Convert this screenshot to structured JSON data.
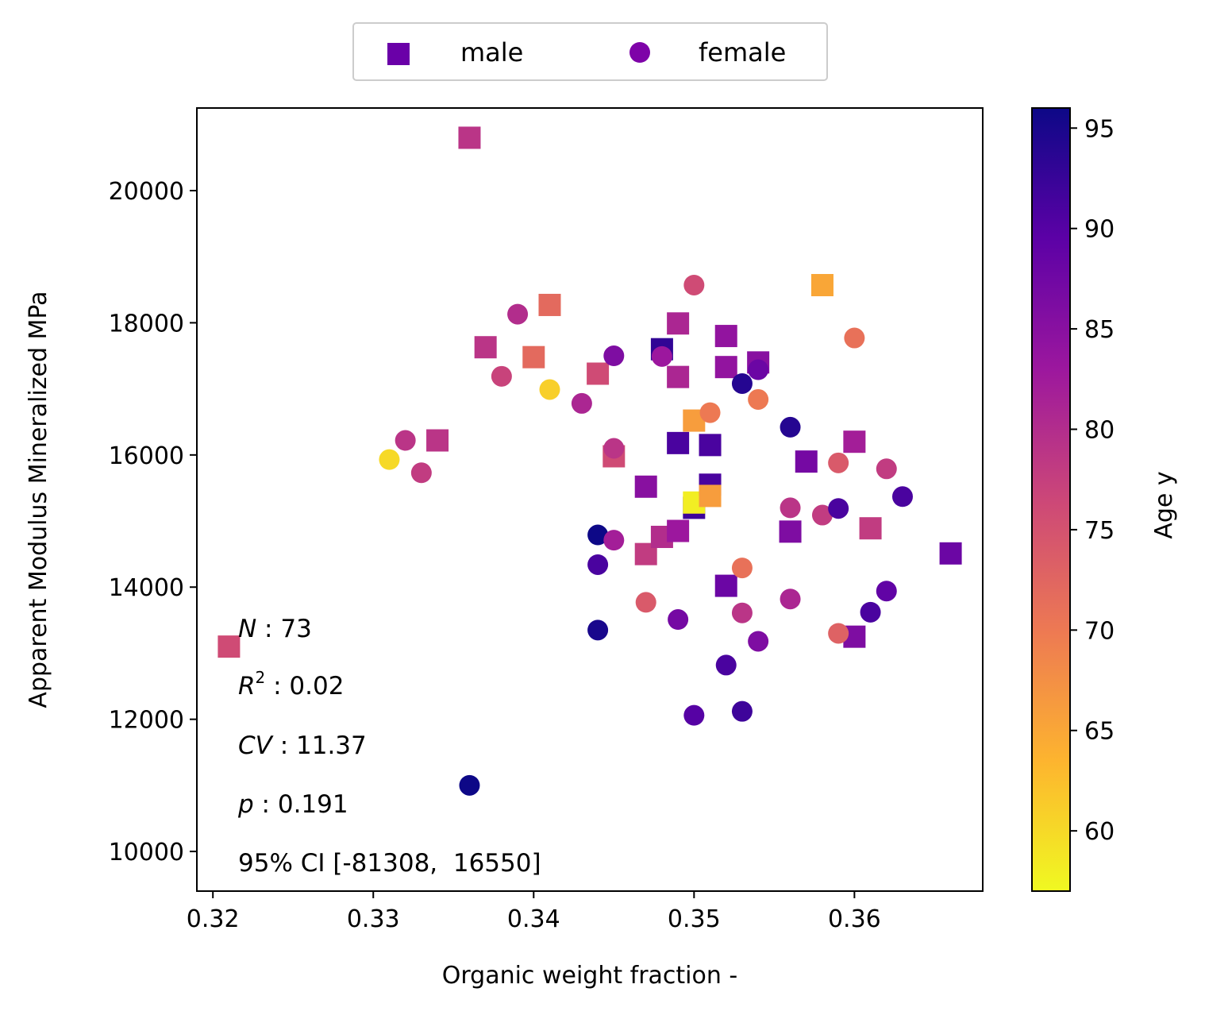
{
  "chart_data": {
    "type": "scatter",
    "xlabel": "Organic weight fraction -",
    "ylabel": "Apparent Modulus Mineralized MPa",
    "xlim": [
      0.319,
      0.368
    ],
    "ylim": [
      9400,
      21250
    ],
    "x_ticks": [
      0.32,
      0.33,
      0.34,
      0.35,
      0.36
    ],
    "x_tick_labels": [
      "0.32",
      "0.33",
      "0.34",
      "0.35",
      "0.36"
    ],
    "y_ticks": [
      10000,
      12000,
      14000,
      16000,
      18000,
      20000
    ],
    "y_tick_labels": [
      "10000",
      "12000",
      "14000",
      "16000",
      "18000",
      "20000"
    ],
    "grid": false,
    "legend": {
      "placement": "top-center",
      "entries": [
        {
          "label": "male",
          "marker": "square",
          "color": "#6a00a8"
        },
        {
          "label": "female",
          "marker": "circle",
          "color": "#7e03a8"
        }
      ]
    },
    "colorbar": {
      "label": "Age y",
      "colormap": "plasma_r",
      "range": [
        57,
        96
      ],
      "ticks": [
        60,
        65,
        70,
        75,
        80,
        85,
        90,
        95
      ],
      "tick_labels": [
        "60",
        "65",
        "70",
        "75",
        "80",
        "85",
        "90",
        "95"
      ],
      "stops": [
        "#f0f921",
        "#fdb42f",
        "#ed7953",
        "#cc4778",
        "#9c179e",
        "#5c01a6",
        "#0d0887"
      ]
    },
    "annotations": {
      "n_sym": "N",
      "n_val": " : 73",
      "r2_sym": "R",
      "r2_sup": "2",
      "r2_val": " : 0.02",
      "cv_sym": "CV",
      "cv_val": " : 11.37",
      "p_sym": "p",
      "p_val": " : 0.191",
      "ci_text": "95% CI [-81308,  16550]"
    },
    "series": [
      {
        "name": "male",
        "marker": "square",
        "points": [
          {
            "x": 0.321,
            "y": 13100,
            "age": 76
          },
          {
            "x": 0.334,
            "y": 16220,
            "age": 79
          },
          {
            "x": 0.336,
            "y": 20800,
            "age": 79
          },
          {
            "x": 0.337,
            "y": 17630,
            "age": 79
          },
          {
            "x": 0.34,
            "y": 17480,
            "age": 72
          },
          {
            "x": 0.341,
            "y": 18270,
            "age": 72
          },
          {
            "x": 0.344,
            "y": 17230,
            "age": 76
          },
          {
            "x": 0.345,
            "y": 15980,
            "age": 76
          },
          {
            "x": 0.347,
            "y": 15520,
            "age": 85
          },
          {
            "x": 0.347,
            "y": 14500,
            "age": 78
          },
          {
            "x": 0.348,
            "y": 17600,
            "age": 93
          },
          {
            "x": 0.348,
            "y": 14760,
            "age": 80
          },
          {
            "x": 0.349,
            "y": 17990,
            "age": 81
          },
          {
            "x": 0.349,
            "y": 17180,
            "age": 81
          },
          {
            "x": 0.349,
            "y": 16180,
            "age": 91
          },
          {
            "x": 0.349,
            "y": 14850,
            "age": 83
          },
          {
            "x": 0.35,
            "y": 16520,
            "age": 66
          },
          {
            "x": 0.35,
            "y": 15200,
            "age": 92
          },
          {
            "x": 0.35,
            "y": 15280,
            "age": 58
          },
          {
            "x": 0.351,
            "y": 16150,
            "age": 91
          },
          {
            "x": 0.351,
            "y": 15550,
            "age": 91
          },
          {
            "x": 0.351,
            "y": 15380,
            "age": 66
          },
          {
            "x": 0.352,
            "y": 17800,
            "age": 84
          },
          {
            "x": 0.352,
            "y": 17330,
            "age": 84
          },
          {
            "x": 0.352,
            "y": 14020,
            "age": 88
          },
          {
            "x": 0.354,
            "y": 17400,
            "age": 85
          },
          {
            "x": 0.356,
            "y": 14840,
            "age": 86
          },
          {
            "x": 0.357,
            "y": 15900,
            "age": 87
          },
          {
            "x": 0.358,
            "y": 18570,
            "age": 65
          },
          {
            "x": 0.36,
            "y": 16200,
            "age": 82
          },
          {
            "x": 0.36,
            "y": 13250,
            "age": 86
          },
          {
            "x": 0.361,
            "y": 14890,
            "age": 78
          },
          {
            "x": 0.366,
            "y": 14510,
            "age": 88
          }
        ]
      },
      {
        "name": "female",
        "marker": "circle",
        "points": [
          {
            "x": 0.331,
            "y": 15930,
            "age": 60
          },
          {
            "x": 0.332,
            "y": 16220,
            "age": 79
          },
          {
            "x": 0.333,
            "y": 15730,
            "age": 78
          },
          {
            "x": 0.336,
            "y": 11000,
            "age": 96
          },
          {
            "x": 0.338,
            "y": 17190,
            "age": 77
          },
          {
            "x": 0.339,
            "y": 18130,
            "age": 80
          },
          {
            "x": 0.341,
            "y": 16990,
            "age": 61
          },
          {
            "x": 0.343,
            "y": 16780,
            "age": 81
          },
          {
            "x": 0.344,
            "y": 14790,
            "age": 96
          },
          {
            "x": 0.344,
            "y": 14340,
            "age": 91
          },
          {
            "x": 0.344,
            "y": 13350,
            "age": 95
          },
          {
            "x": 0.345,
            "y": 17500,
            "age": 86
          },
          {
            "x": 0.345,
            "y": 16100,
            "age": 79
          },
          {
            "x": 0.345,
            "y": 14710,
            "age": 82
          },
          {
            "x": 0.347,
            "y": 13770,
            "age": 74
          },
          {
            "x": 0.348,
            "y": 17490,
            "age": 83
          },
          {
            "x": 0.349,
            "y": 13510,
            "age": 87
          },
          {
            "x": 0.35,
            "y": 18570,
            "age": 76
          },
          {
            "x": 0.35,
            "y": 12060,
            "age": 90
          },
          {
            "x": 0.351,
            "y": 16640,
            "age": 70
          },
          {
            "x": 0.352,
            "y": 12820,
            "age": 91
          },
          {
            "x": 0.353,
            "y": 17080,
            "age": 94
          },
          {
            "x": 0.353,
            "y": 14290,
            "age": 71
          },
          {
            "x": 0.353,
            "y": 13610,
            "age": 79
          },
          {
            "x": 0.353,
            "y": 12120,
            "age": 92
          },
          {
            "x": 0.354,
            "y": 17290,
            "age": 88
          },
          {
            "x": 0.354,
            "y": 16840,
            "age": 70
          },
          {
            "x": 0.354,
            "y": 13180,
            "age": 86
          },
          {
            "x": 0.356,
            "y": 16420,
            "age": 94
          },
          {
            "x": 0.356,
            "y": 15200,
            "age": 79
          },
          {
            "x": 0.356,
            "y": 13820,
            "age": 81
          },
          {
            "x": 0.358,
            "y": 15090,
            "age": 78
          },
          {
            "x": 0.359,
            "y": 15880,
            "age": 74
          },
          {
            "x": 0.359,
            "y": 15190,
            "age": 91
          },
          {
            "x": 0.359,
            "y": 13300,
            "age": 73
          },
          {
            "x": 0.36,
            "y": 17770,
            "age": 71
          },
          {
            "x": 0.361,
            "y": 13620,
            "age": 91
          },
          {
            "x": 0.362,
            "y": 15790,
            "age": 78
          },
          {
            "x": 0.362,
            "y": 13940,
            "age": 89
          },
          {
            "x": 0.363,
            "y": 15370,
            "age": 91
          }
        ]
      }
    ]
  }
}
